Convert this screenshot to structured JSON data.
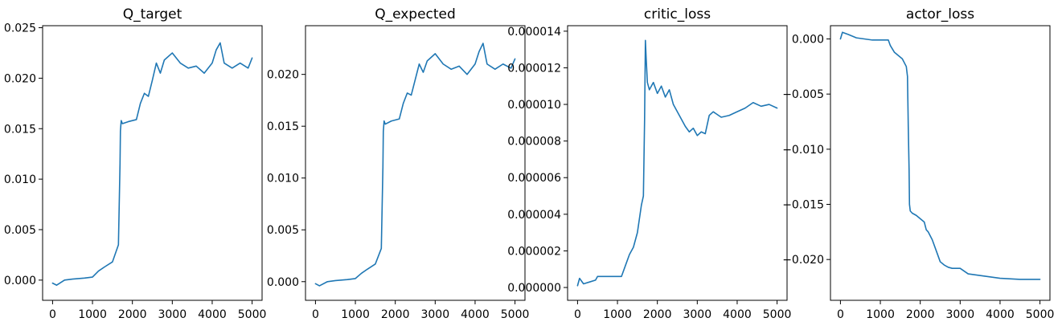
{
  "colors": {
    "series": "#1f77b4",
    "axes": "#000000",
    "background": "#ffffff"
  },
  "chart_data": [
    {
      "type": "line",
      "title": "Q_target",
      "xlabel": "",
      "ylabel": "",
      "grid": false,
      "xlim": [
        -250,
        5250
      ],
      "ylim": [
        -0.002,
        0.0252
      ],
      "xticks": [
        0,
        1000,
        2000,
        3000,
        4000,
        5000
      ],
      "xtick_labels": [
        "0",
        "1000",
        "2000",
        "3000",
        "4000",
        "5000"
      ],
      "yticks": [
        0.0,
        0.005,
        0.01,
        0.015,
        0.02,
        0.025
      ],
      "ytick_labels": [
        "0.000",
        "0.005",
        "0.010",
        "0.015",
        "0.020",
        "0.025"
      ],
      "series": [
        {
          "x": [
            0,
            100,
            300,
            500,
            800,
            1000,
            1150,
            1300,
            1500,
            1650,
            1690,
            1700,
            1720,
            1750,
            1900,
            2100,
            2200,
            2300,
            2400,
            2500,
            2600,
            2700,
            2800,
            3000,
            3200,
            3400,
            3600,
            3800,
            4000,
            4100,
            4200,
            4300,
            4500,
            4700,
            4900,
            5000
          ],
          "y": [
            -0.0003,
            -0.0005,
            0.0,
            0.0001,
            0.0002,
            0.0003,
            0.0009,
            0.0013,
            0.0018,
            0.0035,
            0.0115,
            0.0148,
            0.0158,
            0.0155,
            0.0157,
            0.0159,
            0.0175,
            0.0185,
            0.0182,
            0.0198,
            0.0215,
            0.0205,
            0.0218,
            0.0225,
            0.0215,
            0.021,
            0.0212,
            0.0205,
            0.0215,
            0.0228,
            0.0235,
            0.0215,
            0.021,
            0.0215,
            0.021,
            0.022
          ]
        }
      ]
    },
    {
      "type": "line",
      "title": "Q_expected",
      "xlabel": "",
      "ylabel": "",
      "grid": false,
      "xlim": [
        -250,
        5250
      ],
      "ylim": [
        -0.0018,
        0.0247
      ],
      "xticks": [
        0,
        1000,
        2000,
        3000,
        4000,
        5000
      ],
      "xtick_labels": [
        "0",
        "1000",
        "2000",
        "3000",
        "4000",
        "5000"
      ],
      "yticks": [
        0.0,
        0.005,
        0.01,
        0.015,
        0.02
      ],
      "ytick_labels": [
        "0.000",
        "0.005",
        "0.010",
        "0.015",
        "0.020"
      ],
      "series": [
        {
          "x": [
            0,
            100,
            300,
            500,
            800,
            1000,
            1150,
            1300,
            1500,
            1650,
            1690,
            1700,
            1720,
            1750,
            1900,
            2100,
            2200,
            2300,
            2400,
            2500,
            2600,
            2700,
            2800,
            3000,
            3200,
            3400,
            3600,
            3800,
            4000,
            4100,
            4200,
            4300,
            4500,
            4700,
            4900,
            5000
          ],
          "y": [
            -0.0002,
            -0.0004,
            0.0,
            0.0001,
            0.0002,
            0.0003,
            0.0008,
            0.0012,
            0.0017,
            0.0032,
            0.011,
            0.0145,
            0.0155,
            0.0152,
            0.0155,
            0.0157,
            0.0172,
            0.0182,
            0.018,
            0.0195,
            0.021,
            0.0202,
            0.0213,
            0.022,
            0.021,
            0.0205,
            0.0208,
            0.02,
            0.021,
            0.0222,
            0.023,
            0.021,
            0.0205,
            0.021,
            0.0206,
            0.0215
          ]
        }
      ]
    },
    {
      "type": "line",
      "title": "critic_loss",
      "xlabel": "",
      "ylabel": "",
      "grid": false,
      "xlim": [
        -250,
        5250
      ],
      "ylim": [
        -7e-07,
        1.43e-05
      ],
      "xticks": [
        0,
        1000,
        2000,
        3000,
        4000,
        5000
      ],
      "xtick_labels": [
        "0",
        "1000",
        "2000",
        "3000",
        "4000",
        "5000"
      ],
      "yticks": [
        0.0,
        2e-06,
        4e-06,
        6e-06,
        8e-06,
        1e-05,
        1.2e-05,
        1.4e-05
      ],
      "ytick_labels": [
        "0.000000",
        "0.000002",
        "0.000004",
        "0.000006",
        "0.000008",
        "0.000010",
        "0.000012",
        "0.000014"
      ],
      "series": [
        {
          "x": [
            0,
            50,
            150,
            300,
            450,
            500,
            700,
            900,
            1100,
            1200,
            1300,
            1400,
            1500,
            1600,
            1650,
            1680,
            1700,
            1720,
            1750,
            1800,
            1900,
            2000,
            2100,
            2200,
            2300,
            2400,
            2500,
            2600,
            2700,
            2800,
            2900,
            3000,
            3100,
            3200,
            3300,
            3400,
            3600,
            3800,
            4000,
            4200,
            4400,
            4600,
            4800,
            5000
          ],
          "y": [
            1e-07,
            5e-07,
            2e-07,
            3e-07,
            4e-07,
            6e-07,
            6e-07,
            6e-07,
            6e-07,
            1.2e-06,
            1.8e-06,
            2.2e-06,
            3e-06,
            4.5e-06,
            5e-06,
            9.2e-06,
            1.35e-05,
            1.25e-05,
            1.12e-05,
            1.08e-05,
            1.12e-05,
            1.06e-05,
            1.1e-05,
            1.04e-05,
            1.08e-05,
            1e-05,
            9.6e-06,
            9.2e-06,
            8.8e-06,
            8.5e-06,
            8.7e-06,
            8.3e-06,
            8.5e-06,
            8.4e-06,
            9.4e-06,
            9.6e-06,
            9.3e-06,
            9.4e-06,
            9.6e-06,
            9.8e-06,
            1.01e-05,
            9.9e-06,
            1e-05,
            9.8e-06
          ]
        }
      ]
    },
    {
      "type": "line",
      "title": "actor_loss",
      "xlabel": "",
      "ylabel": "",
      "grid": false,
      "xlim": [
        -250,
        5250
      ],
      "ylim": [
        -0.0237,
        0.0012
      ],
      "xticks": [
        0,
        1000,
        2000,
        3000,
        4000,
        5000
      ],
      "xtick_labels": [
        "0",
        "1000",
        "2000",
        "3000",
        "4000",
        "5000"
      ],
      "yticks": [
        0.0,
        -0.005,
        -0.01,
        -0.015,
        -0.02
      ],
      "ytick_labels": [
        "0.000",
        "−0.005",
        "−0.010",
        "−0.015",
        "−0.020"
      ],
      "series": [
        {
          "x": [
            0,
            50,
            200,
            400,
            600,
            800,
            1000,
            1200,
            1250,
            1350,
            1450,
            1550,
            1650,
            1680,
            1700,
            1720,
            1730,
            1750,
            1800,
            1900,
            2000,
            2100,
            2150,
            2200,
            2300,
            2400,
            2500,
            2600,
            2700,
            2800,
            3000,
            3200,
            3400,
            3600,
            3800,
            4000,
            4500,
            5000
          ],
          "y": [
            0.0,
            0.0006,
            0.0004,
            0.0001,
            0.0,
            -0.0001,
            -0.0001,
            -0.0001,
            -0.0006,
            -0.0012,
            -0.0015,
            -0.0018,
            -0.0025,
            -0.0034,
            -0.008,
            -0.0118,
            -0.015,
            -0.0156,
            -0.0158,
            -0.016,
            -0.0163,
            -0.0166,
            -0.0173,
            -0.0175,
            -0.0182,
            -0.0192,
            -0.0202,
            -0.0205,
            -0.0207,
            -0.0208,
            -0.0208,
            -0.0213,
            -0.0214,
            -0.0215,
            -0.0216,
            -0.0217,
            -0.0218,
            -0.0218
          ]
        }
      ]
    }
  ]
}
